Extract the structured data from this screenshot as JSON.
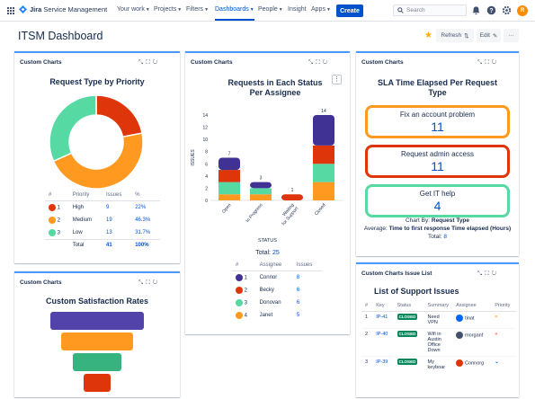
{
  "nav": {
    "brand_strong": "Jira",
    "brand_rest": "Service Management",
    "items": [
      "Your work",
      "Projects",
      "Filters",
      "Dashboards",
      "People",
      "Insight",
      "Apps"
    ],
    "create": "Create",
    "search_placeholder": "Search",
    "avatar": "R"
  },
  "page": {
    "title": "ITSM Dashboard",
    "refresh": "Refresh",
    "edit": "Edit",
    "more": "···"
  },
  "panel1": {
    "header": "Custom Charts",
    "title": "Request Type by Priority",
    "cols": [
      "#",
      "Priority",
      "Issues",
      "%"
    ],
    "rows": [
      {
        "n": "1",
        "p": "High",
        "i": "9",
        "pct": "22%",
        "c": "#de350b"
      },
      {
        "n": "2",
        "p": "Medium",
        "i": "19",
        "pct": "46.3%",
        "c": "#ff991f"
      },
      {
        "n": "3",
        "p": "Low",
        "i": "13",
        "pct": "31.7%",
        "c": "#57d9a3"
      }
    ],
    "total_label": "Total",
    "total_issues": "41",
    "total_pct": "100%"
  },
  "panel2": {
    "header": "Custom Charts",
    "title": "Custom Satisfaction Rates",
    "funnel_colors": [
      "#5243aa",
      "#ff991f",
      "#36b37e",
      "#de350b"
    ]
  },
  "panel3": {
    "header": "Custom Charts",
    "title": "Requests in Each Status Per Assignee",
    "ylabel": "ISSUES",
    "xlabel": "STATUS",
    "total_label": "Total:",
    "total_value": "25",
    "cols": [
      "#",
      "Assignee",
      "Issues"
    ],
    "rows": [
      {
        "n": "1",
        "a": "Connor",
        "i": "8",
        "c": "#403294"
      },
      {
        "n": "2",
        "a": "Becky",
        "i": "6",
        "c": "#de350b"
      },
      {
        "n": "3",
        "a": "Donovan",
        "i": "6",
        "c": "#57d9a3"
      },
      {
        "n": "4",
        "a": "Janet",
        "i": "5",
        "c": "#ff991f"
      }
    ]
  },
  "chart_data": {
    "type": "bar",
    "stacked": true,
    "categories": [
      "Open",
      "In Progress",
      "Waiting for Support",
      "Closed"
    ],
    "ylabel": "ISSUES",
    "xlabel": "STATUS",
    "ylim": [
      0,
      14
    ],
    "yticks": [
      0,
      2,
      4,
      6,
      8,
      10,
      12,
      14
    ],
    "totals": [
      7,
      3,
      1,
      14
    ],
    "series": [
      {
        "name": "Connor",
        "color": "#403294",
        "values": [
          2,
          1,
          0,
          5
        ]
      },
      {
        "name": "Becky",
        "color": "#de350b",
        "values": [
          2,
          0,
          1,
          3
        ]
      },
      {
        "name": "Donovan",
        "color": "#57d9a3",
        "values": [
          2,
          1,
          0,
          3
        ]
      },
      {
        "name": "Janet",
        "color": "#ff991f",
        "values": [
          1,
          1,
          0,
          3
        ]
      }
    ]
  },
  "panel4": {
    "header": "Custom Charts",
    "title": "SLA Time Elapsed Per Request Type",
    "items": [
      {
        "label": "Fix an account problem",
        "value": "11",
        "color": "#ff991f"
      },
      {
        "label": "Request admin access",
        "value": "11",
        "color": "#de350b"
      },
      {
        "label": "Get IT help",
        "value": "4",
        "color": "#57d9a3"
      }
    ],
    "chartby_label": "Chart By:",
    "chartby_value": "Request Type",
    "avg_label": "Average:",
    "avg_value": "Time to first response Time elapsed (Hours)",
    "total_label": "Total:",
    "total_value": "8"
  },
  "panel5": {
    "header": "Custom Charts Issue List",
    "title": "List of Support Issues",
    "cols": [
      "#",
      "Key",
      "Status",
      "Summary",
      "Assignee",
      "Priority"
    ],
    "rows": [
      {
        "n": "1",
        "key": "IP-41",
        "status": "CLOSED",
        "summary": "Need VPN",
        "assignee": "tinat",
        "ac": "#0065ff",
        "al": "T",
        "pr": "=",
        "pc": "#ffab00"
      },
      {
        "n": "2",
        "key": "IP-40",
        "status": "CLOSED",
        "summary": "Wifi in Austin Office Down",
        "assignee": "morganf",
        "ac": "#42526e",
        "al": "M",
        "pr": "»",
        "pc": "#ff5630"
      },
      {
        "n": "3",
        "key": "IP-39",
        "status": "CLOSED",
        "summary": "My keyboar",
        "assignee": "Connorg",
        "ac": "#de350b",
        "al": "C",
        "pr": "⌄",
        "pc": "#0065ff"
      }
    ]
  }
}
